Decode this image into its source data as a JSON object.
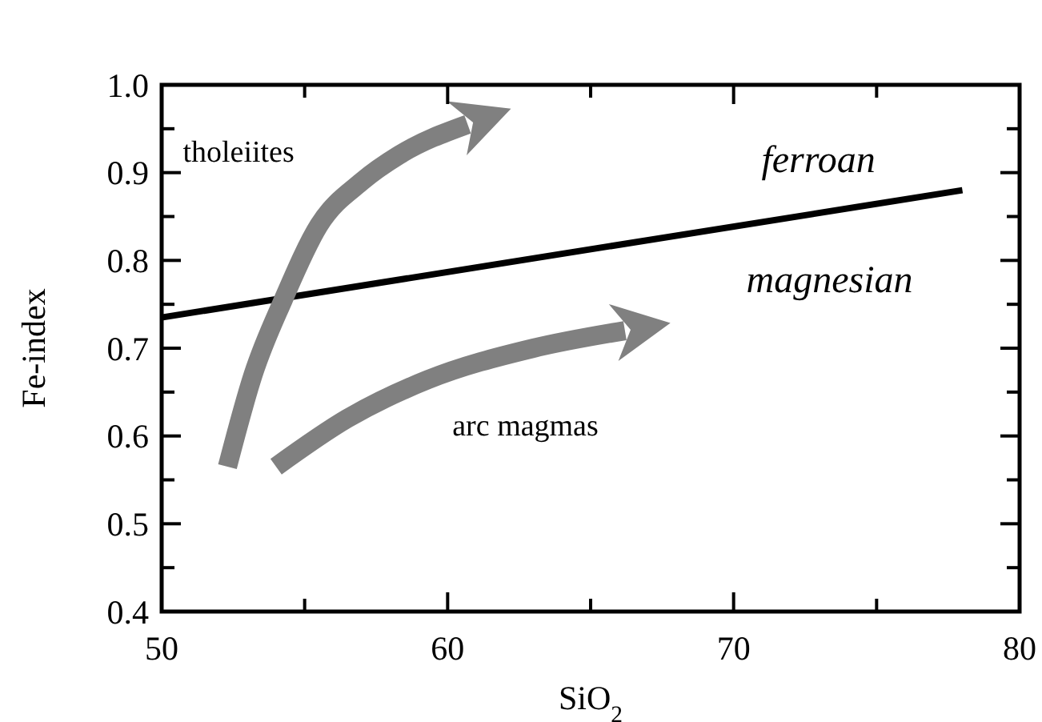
{
  "chart_data": {
    "type": "line",
    "xlabel": "SiO$_{2}$",
    "ylabel": "Fe-index",
    "xlim": [
      50,
      80
    ],
    "ylim": [
      0.4,
      1.0
    ],
    "xticks": [
      50,
      {
        "value": 55,
        "label": null
      },
      60,
      {
        "value": 65,
        "label": null
      },
      70,
      {
        "value": 75,
        "label": null
      },
      80
    ],
    "yticks": [
      0.4,
      {
        "value": 0.45,
        "label": null
      },
      0.5,
      {
        "value": 0.55,
        "label": null
      },
      0.6,
      {
        "value": 0.65,
        "label": null
      },
      0.7,
      {
        "value": 0.75,
        "label": null
      },
      0.8,
      {
        "value": 0.85,
        "label": null
      },
      0.9,
      {
        "value": 0.95,
        "label": null
      },
      {
        "value": 1.0,
        "label": "1.0"
      }
    ],
    "grid": false,
    "marker": "none",
    "line_style": "solid",
    "series": [
      {
        "color": "#000000",
        "x": [
          50,
          78
        ],
        "values": [
          0.735,
          0.88
        ]
      },
      {
        "name": "tholeiites",
        "color": "#808080",
        "x": [
          52.3,
          53.2,
          54.25,
          55.5,
          57,
          58.3,
          60.7
        ],
        "values": [
          0.565,
          0.67,
          0.755,
          0.84,
          0.89,
          0.92,
          0.955
        ]
      },
      {
        "name": "arc magmas",
        "color": "#808080",
        "x": [
          54,
          56.5,
          59.3,
          63,
          66.2
        ],
        "values": [
          0.565,
          0.62,
          0.664,
          0.7,
          0.72
        ]
      }
    ],
    "annotations": [
      "ferroan",
      "magnesian"
    ]
  }
}
